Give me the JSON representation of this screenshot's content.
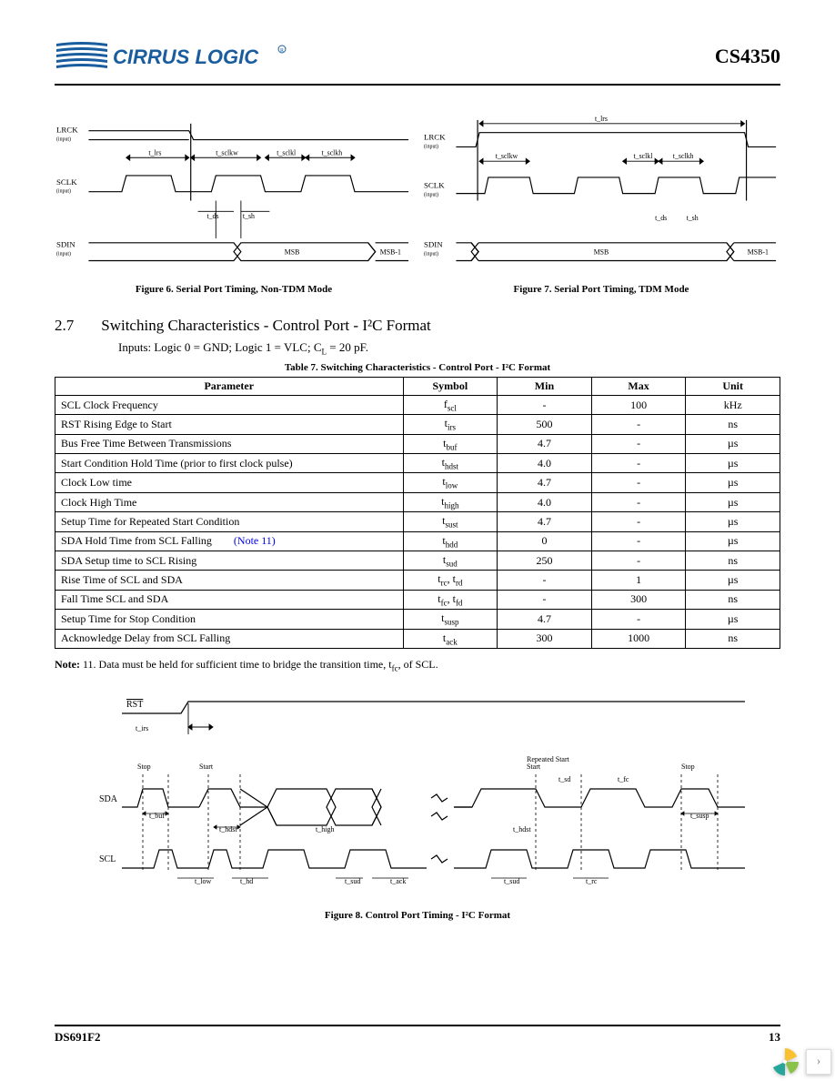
{
  "header": {
    "company": "CIRRUS LOGIC",
    "chip": "CS4350"
  },
  "figures": {
    "fig6_caption": "Figure 6.  Serial Port Timing, Non-TDM Mode",
    "fig7_caption": "Figure 7.  Serial Port Timing, TDM Mode",
    "fig8_caption": "Figure 8.  Control Port Timing - I²C Format",
    "signals": {
      "lrck": "LRCK",
      "sclk": "SCLK",
      "sdin": "SDIN",
      "input_sub": "(input)",
      "msb": "MSB",
      "msb1": "MSB-1",
      "rst": "RST",
      "sda": "SDA",
      "scl": "SCL",
      "stop": "Stop",
      "start": "Start",
      "repeated_start": "Repeated Start",
      "t_lrs": "t_lrs",
      "t_sclkw": "t_sclkw",
      "t_sclkh": "t_sclkh",
      "t_sclkl": "t_sclkl",
      "t_ds": "t_ds",
      "t_sh": "t_sh",
      "t_irs": "t_irs",
      "t_buf": "t_buf",
      "t_hdst": "t_hdst",
      "t_low": "t_low",
      "t_hd": "t_hd",
      "t_high": "t_high",
      "t_sud": "t_sud",
      "t_ack": "t_ack",
      "t_susp": "t_susp",
      "t_sd": "t_sd",
      "t_fc": "t_fc",
      "t_rc": "t_rc"
    }
  },
  "section": {
    "number": "2.7",
    "title": "Switching Characteristics - Control Port - I²C Format",
    "inputs_line_a": "Inputs: Logic 0 = GND; Logic 1 = VLC; C",
    "inputs_line_b": " = 20 pF.",
    "inputs_sub": "L"
  },
  "table": {
    "title": "Table 7. Switching Characteristics - Control Port - I²C Format",
    "headers": [
      "Parameter",
      "Symbol",
      "Min",
      "Max",
      "Unit"
    ],
    "col_widths": [
      "48%",
      "13%",
      "13%",
      "13%",
      "13%"
    ],
    "rows": [
      {
        "param": "SCL Clock Frequency",
        "sym": "f",
        "sub": "scl",
        "min": "-",
        "max": "100",
        "unit": "kHz"
      },
      {
        "param": "RST Rising Edge to Start",
        "sym": "t",
        "sub": "irs",
        "min": "500",
        "max": "-",
        "unit": "ns"
      },
      {
        "param": "Bus Free Time Between Transmissions",
        "sym": "t",
        "sub": "buf",
        "min": "4.7",
        "max": "-",
        "unit": "µs"
      },
      {
        "param": "Start Condition Hold Time (prior to first clock pulse)",
        "sym": "t",
        "sub": "hdst",
        "min": "4.0",
        "max": "-",
        "unit": "µs"
      },
      {
        "param": "Clock Low time",
        "sym": "t",
        "sub": "low",
        "min": "4.7",
        "max": "-",
        "unit": "µs"
      },
      {
        "param": "Clock High Time",
        "sym": "t",
        "sub": "high",
        "min": "4.0",
        "max": "-",
        "unit": "µs"
      },
      {
        "param": "Setup Time for Repeated Start Condition",
        "sym": "t",
        "sub": "sust",
        "min": "4.7",
        "max": "-",
        "unit": "µs"
      },
      {
        "param": "SDA Hold Time from SCL Falling",
        "note": "(Note 11)",
        "sym": "t",
        "sub": "hdd",
        "min": "0",
        "max": "-",
        "unit": "µs"
      },
      {
        "param": "SDA Setup time to SCL Rising",
        "sym": "t",
        "sub": "sud",
        "min": "250",
        "max": "-",
        "unit": "ns"
      },
      {
        "param": "Rise Time of SCL and SDA",
        "sym": "t",
        "sub": "rc",
        "sym2": "t",
        "sub2": "rd",
        "min": "-",
        "max": "1",
        "unit": "µs"
      },
      {
        "param": "Fall Time SCL and SDA",
        "sym": "t",
        "sub": "fc",
        "sym2": "t",
        "sub2": "fd",
        "min": "-",
        "max": "300",
        "unit": "ns"
      },
      {
        "param": "Setup Time for Stop Condition",
        "sym": "t",
        "sub": "susp",
        "min": "4.7",
        "max": "-",
        "unit": "µs"
      },
      {
        "param": "Acknowledge Delay from SCL Falling",
        "sym": "t",
        "sub": "ack",
        "min": "300",
        "max": "1000",
        "unit": "ns"
      }
    ]
  },
  "note": {
    "label": "Note:",
    "num": "11.",
    "text_a": "Data must be held for sufficient time to bridge the transition time, t",
    "text_b": ", of SCL.",
    "sub": "fc"
  },
  "footer": {
    "doc": "DS691F2",
    "page": "13"
  },
  "colors": {
    "logo_blue": "#1a5d9e",
    "text": "#000000",
    "link": "#0000ee",
    "corner_yellow": "#fbc02d",
    "corner_green": "#8bc34a",
    "corner_teal": "#26a69a"
  }
}
